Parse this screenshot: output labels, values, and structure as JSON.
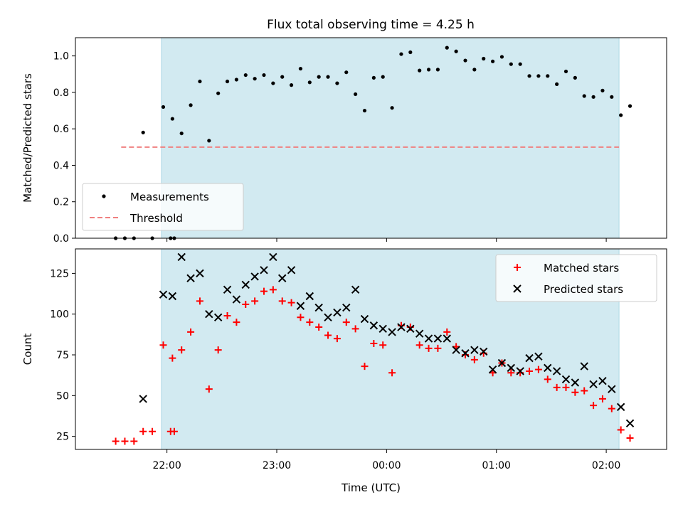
{
  "title": "Flux total observing time = 4.25 h",
  "colors": {
    "shade": "#add8e6",
    "threshold": "#f08080",
    "matched": "#ff0000",
    "predicted": "#000000",
    "measurement": "#000000"
  },
  "chart_data": [
    {
      "type": "scatter",
      "ylabel": "Matched/Predicted stars",
      "xlim": [
        "21:10",
        "02:33"
      ],
      "ylim": [
        0,
        1.1
      ],
      "yticks": [
        0.0,
        0.2,
        0.4,
        0.6,
        0.8,
        1.0
      ],
      "ytick_labels": [
        "0.0",
        "0.2",
        "0.4",
        "0.6",
        "0.8",
        "1.0"
      ],
      "shaded_region": [
        "21:57",
        "02:07"
      ],
      "legend_placement": "lower-left",
      "series": [
        {
          "name": "Measurements",
          "marker": "dot",
          "points": [
            [
              "21:32",
              0.0
            ],
            [
              "21:37",
              0.0
            ],
            [
              "21:42",
              0.0
            ],
            [
              "21:47",
              0.58
            ],
            [
              "21:52",
              0.0
            ],
            [
              "22:02",
              0.0
            ],
            [
              "22:04",
              0.0
            ],
            [
              "21:58",
              0.72
            ],
            [
              "22:03",
              0.655
            ],
            [
              "22:08",
              0.575
            ],
            [
              "22:13",
              0.73
            ],
            [
              "22:18",
              0.86
            ],
            [
              "22:23",
              0.535
            ],
            [
              "22:28",
              0.795
            ],
            [
              "22:33",
              0.86
            ],
            [
              "22:38",
              0.87
            ],
            [
              "22:43",
              0.895
            ],
            [
              "22:48",
              0.875
            ],
            [
              "22:53",
              0.895
            ],
            [
              "22:58",
              0.85
            ],
            [
              "23:03",
              0.885
            ],
            [
              "23:08",
              0.84
            ],
            [
              "23:13",
              0.93
            ],
            [
              "23:18",
              0.855
            ],
            [
              "23:23",
              0.885
            ],
            [
              "23:28",
              0.885
            ],
            [
              "23:33",
              0.85
            ],
            [
              "23:38",
              0.91
            ],
            [
              "23:43",
              0.79
            ],
            [
              "23:48",
              0.7
            ],
            [
              "23:53",
              0.88
            ],
            [
              "23:58",
              0.885
            ],
            [
              "00:03",
              0.715
            ],
            [
              "00:08",
              1.01
            ],
            [
              "00:13",
              1.02
            ],
            [
              "00:18",
              0.92
            ],
            [
              "00:23",
              0.925
            ],
            [
              "00:28",
              0.925
            ],
            [
              "00:33",
              1.045
            ],
            [
              "00:38",
              1.025
            ],
            [
              "00:43",
              0.975
            ],
            [
              "00:48",
              0.925
            ],
            [
              "00:53",
              0.985
            ],
            [
              "00:58",
              0.97
            ],
            [
              "01:03",
              0.995
            ],
            [
              "01:08",
              0.955
            ],
            [
              "01:13",
              0.955
            ],
            [
              "01:18",
              0.89
            ],
            [
              "01:23",
              0.89
            ],
            [
              "01:28",
              0.89
            ],
            [
              "01:33",
              0.845
            ],
            [
              "01:38",
              0.915
            ],
            [
              "01:43",
              0.88
            ],
            [
              "01:48",
              0.78
            ],
            [
              "01:53",
              0.775
            ],
            [
              "01:58",
              0.81
            ],
            [
              "02:03",
              0.775
            ],
            [
              "02:08",
              0.675
            ],
            [
              "02:13",
              0.725
            ]
          ]
        },
        {
          "name": "Threshold",
          "style": "dashed",
          "points": [
            [
              "21:35",
              0.5
            ],
            [
              "02:07",
              0.5
            ]
          ]
        }
      ]
    },
    {
      "type": "scatter",
      "xlabel": "Time (UTC)",
      "ylabel": "Count",
      "xlim": [
        "21:10",
        "02:33"
      ],
      "ylim": [
        17,
        140
      ],
      "yticks": [
        25,
        50,
        75,
        100,
        125
      ],
      "xticks": [
        "22:00",
        "23:00",
        "00:00",
        "01:00",
        "02:00"
      ],
      "shaded_region": [
        "21:57",
        "02:07"
      ],
      "legend_placement": "top-right",
      "series": [
        {
          "name": "Matched stars",
          "marker": "plus",
          "points": [
            [
              "21:32",
              22
            ],
            [
              "21:37",
              22
            ],
            [
              "21:42",
              22
            ],
            [
              "21:47",
              28
            ],
            [
              "21:52",
              28
            ],
            [
              "22:02",
              28
            ],
            [
              "22:04",
              28
            ],
            [
              "21:58",
              81
            ],
            [
              "22:03",
              73
            ],
            [
              "22:08",
              78
            ],
            [
              "22:13",
              89
            ],
            [
              "22:18",
              108
            ],
            [
              "22:23",
              54
            ],
            [
              "22:28",
              78
            ],
            [
              "22:33",
              99
            ],
            [
              "22:38",
              95
            ],
            [
              "22:43",
              106
            ],
            [
              "22:48",
              108
            ],
            [
              "22:53",
              114
            ],
            [
              "22:58",
              115
            ],
            [
              "23:03",
              108
            ],
            [
              "23:08",
              107
            ],
            [
              "23:13",
              98
            ],
            [
              "23:18",
              95
            ],
            [
              "23:23",
              92
            ],
            [
              "23:28",
              87
            ],
            [
              "23:33",
              85
            ],
            [
              "23:38",
              95
            ],
            [
              "23:43",
              91
            ],
            [
              "23:48",
              68
            ],
            [
              "23:53",
              82
            ],
            [
              "23:58",
              81
            ],
            [
              "00:03",
              64
            ],
            [
              "00:08",
              93
            ],
            [
              "00:13",
              92
            ],
            [
              "00:18",
              81
            ],
            [
              "00:23",
              79
            ],
            [
              "00:28",
              79
            ],
            [
              "00:33",
              89
            ],
            [
              "00:38",
              80
            ],
            [
              "00:43",
              75
            ],
            [
              "00:48",
              72
            ],
            [
              "00:53",
              76
            ],
            [
              "00:58",
              64
            ],
            [
              "01:03",
              70
            ],
            [
              "01:08",
              64
            ],
            [
              "01:13",
              64
            ],
            [
              "01:18",
              65
            ],
            [
              "01:23",
              66
            ],
            [
              "01:28",
              60
            ],
            [
              "01:33",
              55
            ],
            [
              "01:38",
              55
            ],
            [
              "01:43",
              52
            ],
            [
              "01:48",
              53
            ],
            [
              "01:53",
              44
            ],
            [
              "01:58",
              48
            ],
            [
              "02:03",
              42
            ],
            [
              "02:08",
              29
            ],
            [
              "02:13",
              24
            ]
          ]
        },
        {
          "name": "Predicted stars",
          "marker": "x",
          "points": [
            [
              "21:47",
              48
            ],
            [
              "21:58",
              112
            ],
            [
              "22:03",
              111
            ],
            [
              "22:08",
              135
            ],
            [
              "22:13",
              122
            ],
            [
              "22:18",
              125
            ],
            [
              "22:23",
              100
            ],
            [
              "22:28",
              98
            ],
            [
              "22:33",
              115
            ],
            [
              "22:38",
              109
            ],
            [
              "22:43",
              118
            ],
            [
              "22:48",
              123
            ],
            [
              "22:53",
              127
            ],
            [
              "22:58",
              135
            ],
            [
              "23:03",
              122
            ],
            [
              "23:08",
              127
            ],
            [
              "23:13",
              105
            ],
            [
              "23:18",
              111
            ],
            [
              "23:23",
              104
            ],
            [
              "23:28",
              98
            ],
            [
              "23:33",
              101
            ],
            [
              "23:38",
              104
            ],
            [
              "23:43",
              115
            ],
            [
              "23:48",
              97
            ],
            [
              "23:53",
              93
            ],
            [
              "23:58",
              91
            ],
            [
              "00:03",
              89
            ],
            [
              "00:08",
              92
            ],
            [
              "00:13",
              91
            ],
            [
              "00:18",
              88
            ],
            [
              "00:23",
              85
            ],
            [
              "00:28",
              85
            ],
            [
              "00:33",
              85
            ],
            [
              "00:38",
              78
            ],
            [
              "00:43",
              76
            ],
            [
              "00:48",
              78
            ],
            [
              "00:53",
              77
            ],
            [
              "00:58",
              66
            ],
            [
              "01:03",
              70
            ],
            [
              "01:08",
              67
            ],
            [
              "01:13",
              65
            ],
            [
              "01:18",
              73
            ],
            [
              "01:23",
              74
            ],
            [
              "01:28",
              67
            ],
            [
              "01:33",
              65
            ],
            [
              "01:38",
              60
            ],
            [
              "01:43",
              58
            ],
            [
              "01:48",
              68
            ],
            [
              "01:53",
              57
            ],
            [
              "01:58",
              59
            ],
            [
              "02:03",
              54
            ],
            [
              "02:08",
              43
            ],
            [
              "02:13",
              33
            ]
          ]
        }
      ]
    }
  ]
}
